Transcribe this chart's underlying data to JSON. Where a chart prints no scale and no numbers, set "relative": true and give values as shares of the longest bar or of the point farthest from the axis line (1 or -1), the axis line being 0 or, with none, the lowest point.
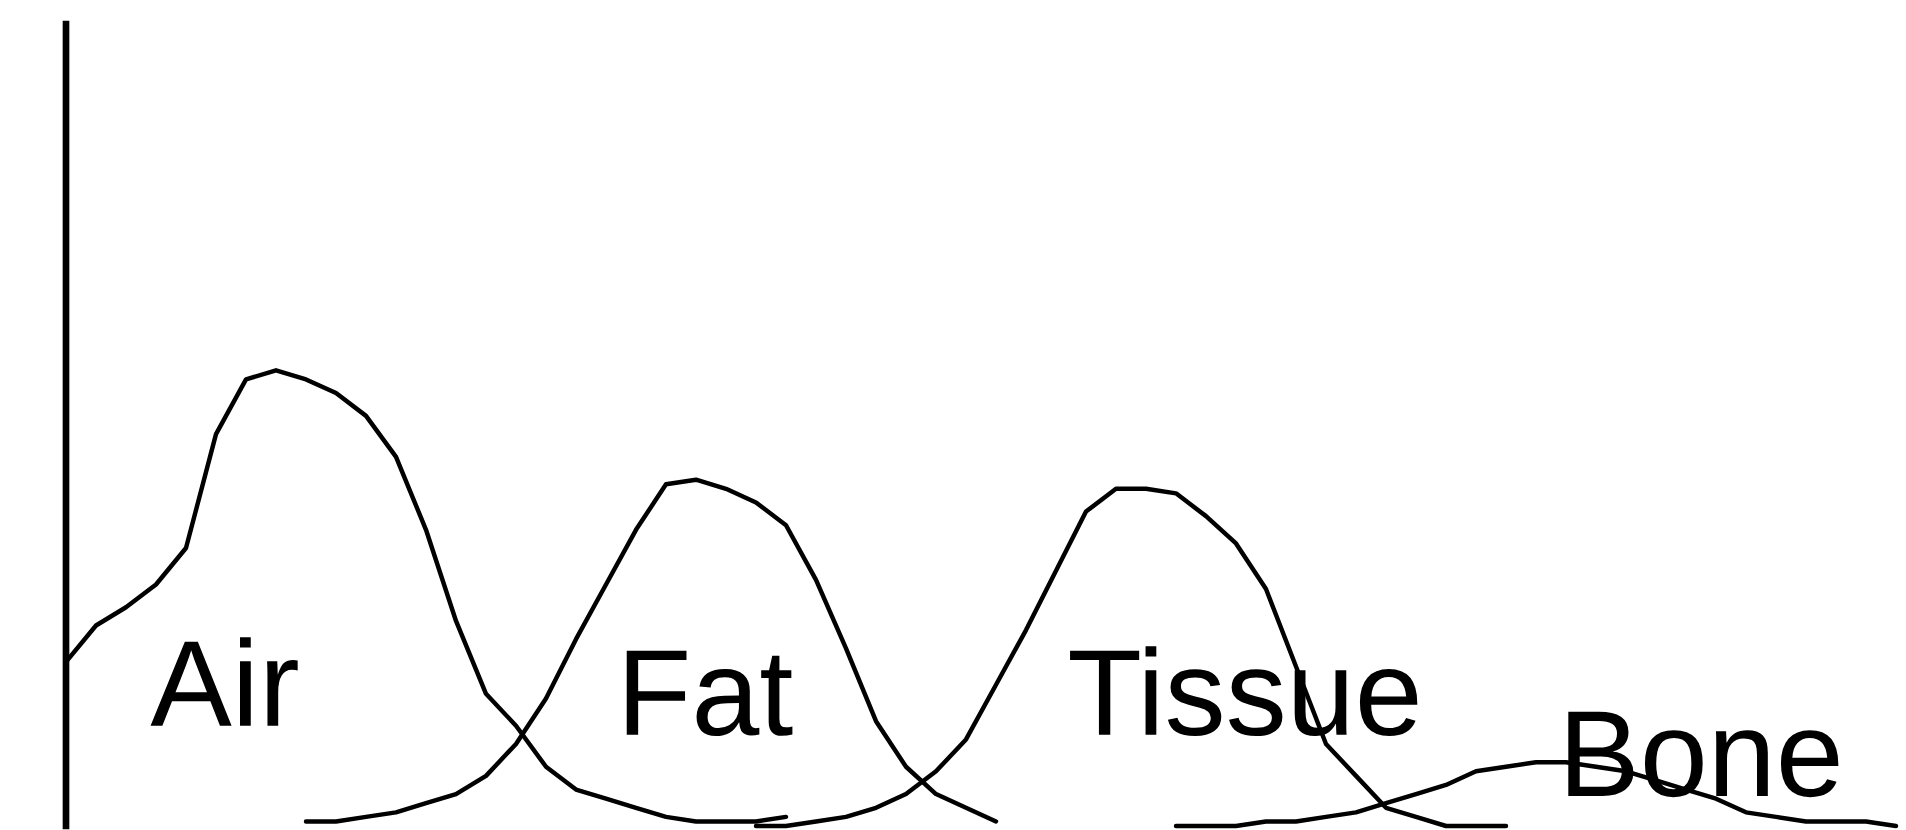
{
  "chart_data": {
    "type": "line",
    "relative": true,
    "categories": [
      null,
      null,
      null,
      null,
      null,
      null,
      null,
      null,
      null,
      null,
      null,
      null,
      null,
      null,
      null,
      null,
      null,
      null,
      null,
      null,
      null,
      null,
      null,
      null,
      null,
      null,
      null,
      null,
      null,
      null,
      null,
      null,
      null,
      null,
      null,
      null,
      null,
      null,
      null,
      null,
      null,
      null,
      null,
      null,
      null,
      null,
      null,
      null,
      null,
      null,
      null,
      null,
      null,
      null,
      null,
      null,
      null,
      null,
      null,
      null,
      null,
      null
    ],
    "series": [
      {
        "name": "Air",
        "color": "#000000",
        "values": [
          0.36,
          0.44,
          0.48,
          0.53,
          0.61,
          0.86,
          0.98,
          1.0,
          0.98,
          0.95,
          0.9,
          0.81,
          0.65,
          0.45,
          0.29,
          0.22,
          0.13,
          0.08,
          0.06,
          0.04,
          0.02,
          0.01,
          0.01,
          0.01,
          0.02,
          null,
          null,
          null,
          null,
          null,
          null,
          null,
          null,
          null,
          null,
          null,
          null,
          null,
          null,
          null,
          null,
          null,
          null,
          null,
          null,
          null,
          null,
          null,
          null,
          null,
          null,
          null,
          null,
          null,
          null,
          null,
          null,
          null,
          null,
          null,
          null,
          null
        ]
      },
      {
        "name": "Fat",
        "color": "#000000",
        "values": [
          null,
          null,
          null,
          null,
          null,
          null,
          null,
          null,
          0.01,
          0.01,
          0.02,
          0.03,
          0.05,
          0.07,
          0.11,
          0.18,
          0.28,
          0.41,
          0.53,
          0.65,
          0.75,
          0.76,
          0.74,
          0.71,
          0.66,
          0.54,
          0.39,
          0.23,
          0.13,
          0.07,
          0.04,
          0.01,
          null,
          null,
          null,
          null,
          null,
          null,
          null,
          null,
          null,
          null,
          null,
          null,
          null,
          null,
          null,
          null,
          null,
          null,
          null,
          null,
          null,
          null,
          null,
          null,
          null,
          null,
          null,
          null,
          null,
          null
        ]
      },
      {
        "name": "Tissue",
        "color": "#000000",
        "values": [
          null,
          null,
          null,
          null,
          null,
          null,
          null,
          null,
          null,
          null,
          null,
          null,
          null,
          null,
          null,
          null,
          null,
          null,
          null,
          null,
          null,
          null,
          null,
          0.0,
          0.0,
          0.01,
          0.02,
          0.04,
          0.07,
          0.12,
          0.19,
          0.31,
          0.43,
          0.56,
          0.69,
          0.74,
          0.74,
          0.73,
          0.68,
          0.62,
          0.52,
          0.35,
          0.18,
          0.11,
          0.04,
          0.02,
          0.0,
          0.0,
          0.0,
          null,
          null,
          null,
          null,
          null,
          null,
          null,
          null,
          null,
          null,
          null,
          null,
          null
        ]
      },
      {
        "name": "Bone",
        "color": "#000000",
        "values": [
          null,
          null,
          null,
          null,
          null,
          null,
          null,
          null,
          null,
          null,
          null,
          null,
          null,
          null,
          null,
          null,
          null,
          null,
          null,
          null,
          null,
          null,
          null,
          null,
          null,
          null,
          null,
          null,
          null,
          null,
          null,
          null,
          null,
          null,
          null,
          null,
          null,
          0.0,
          0.0,
          0.0,
          0.01,
          0.01,
          0.02,
          0.03,
          0.05,
          0.07,
          0.09,
          0.12,
          0.13,
          0.14,
          0.14,
          0.13,
          0.12,
          0.1,
          0.08,
          0.06,
          0.03,
          0.02,
          0.01,
          0.01,
          0.01,
          0.0
        ]
      }
    ]
  }
}
